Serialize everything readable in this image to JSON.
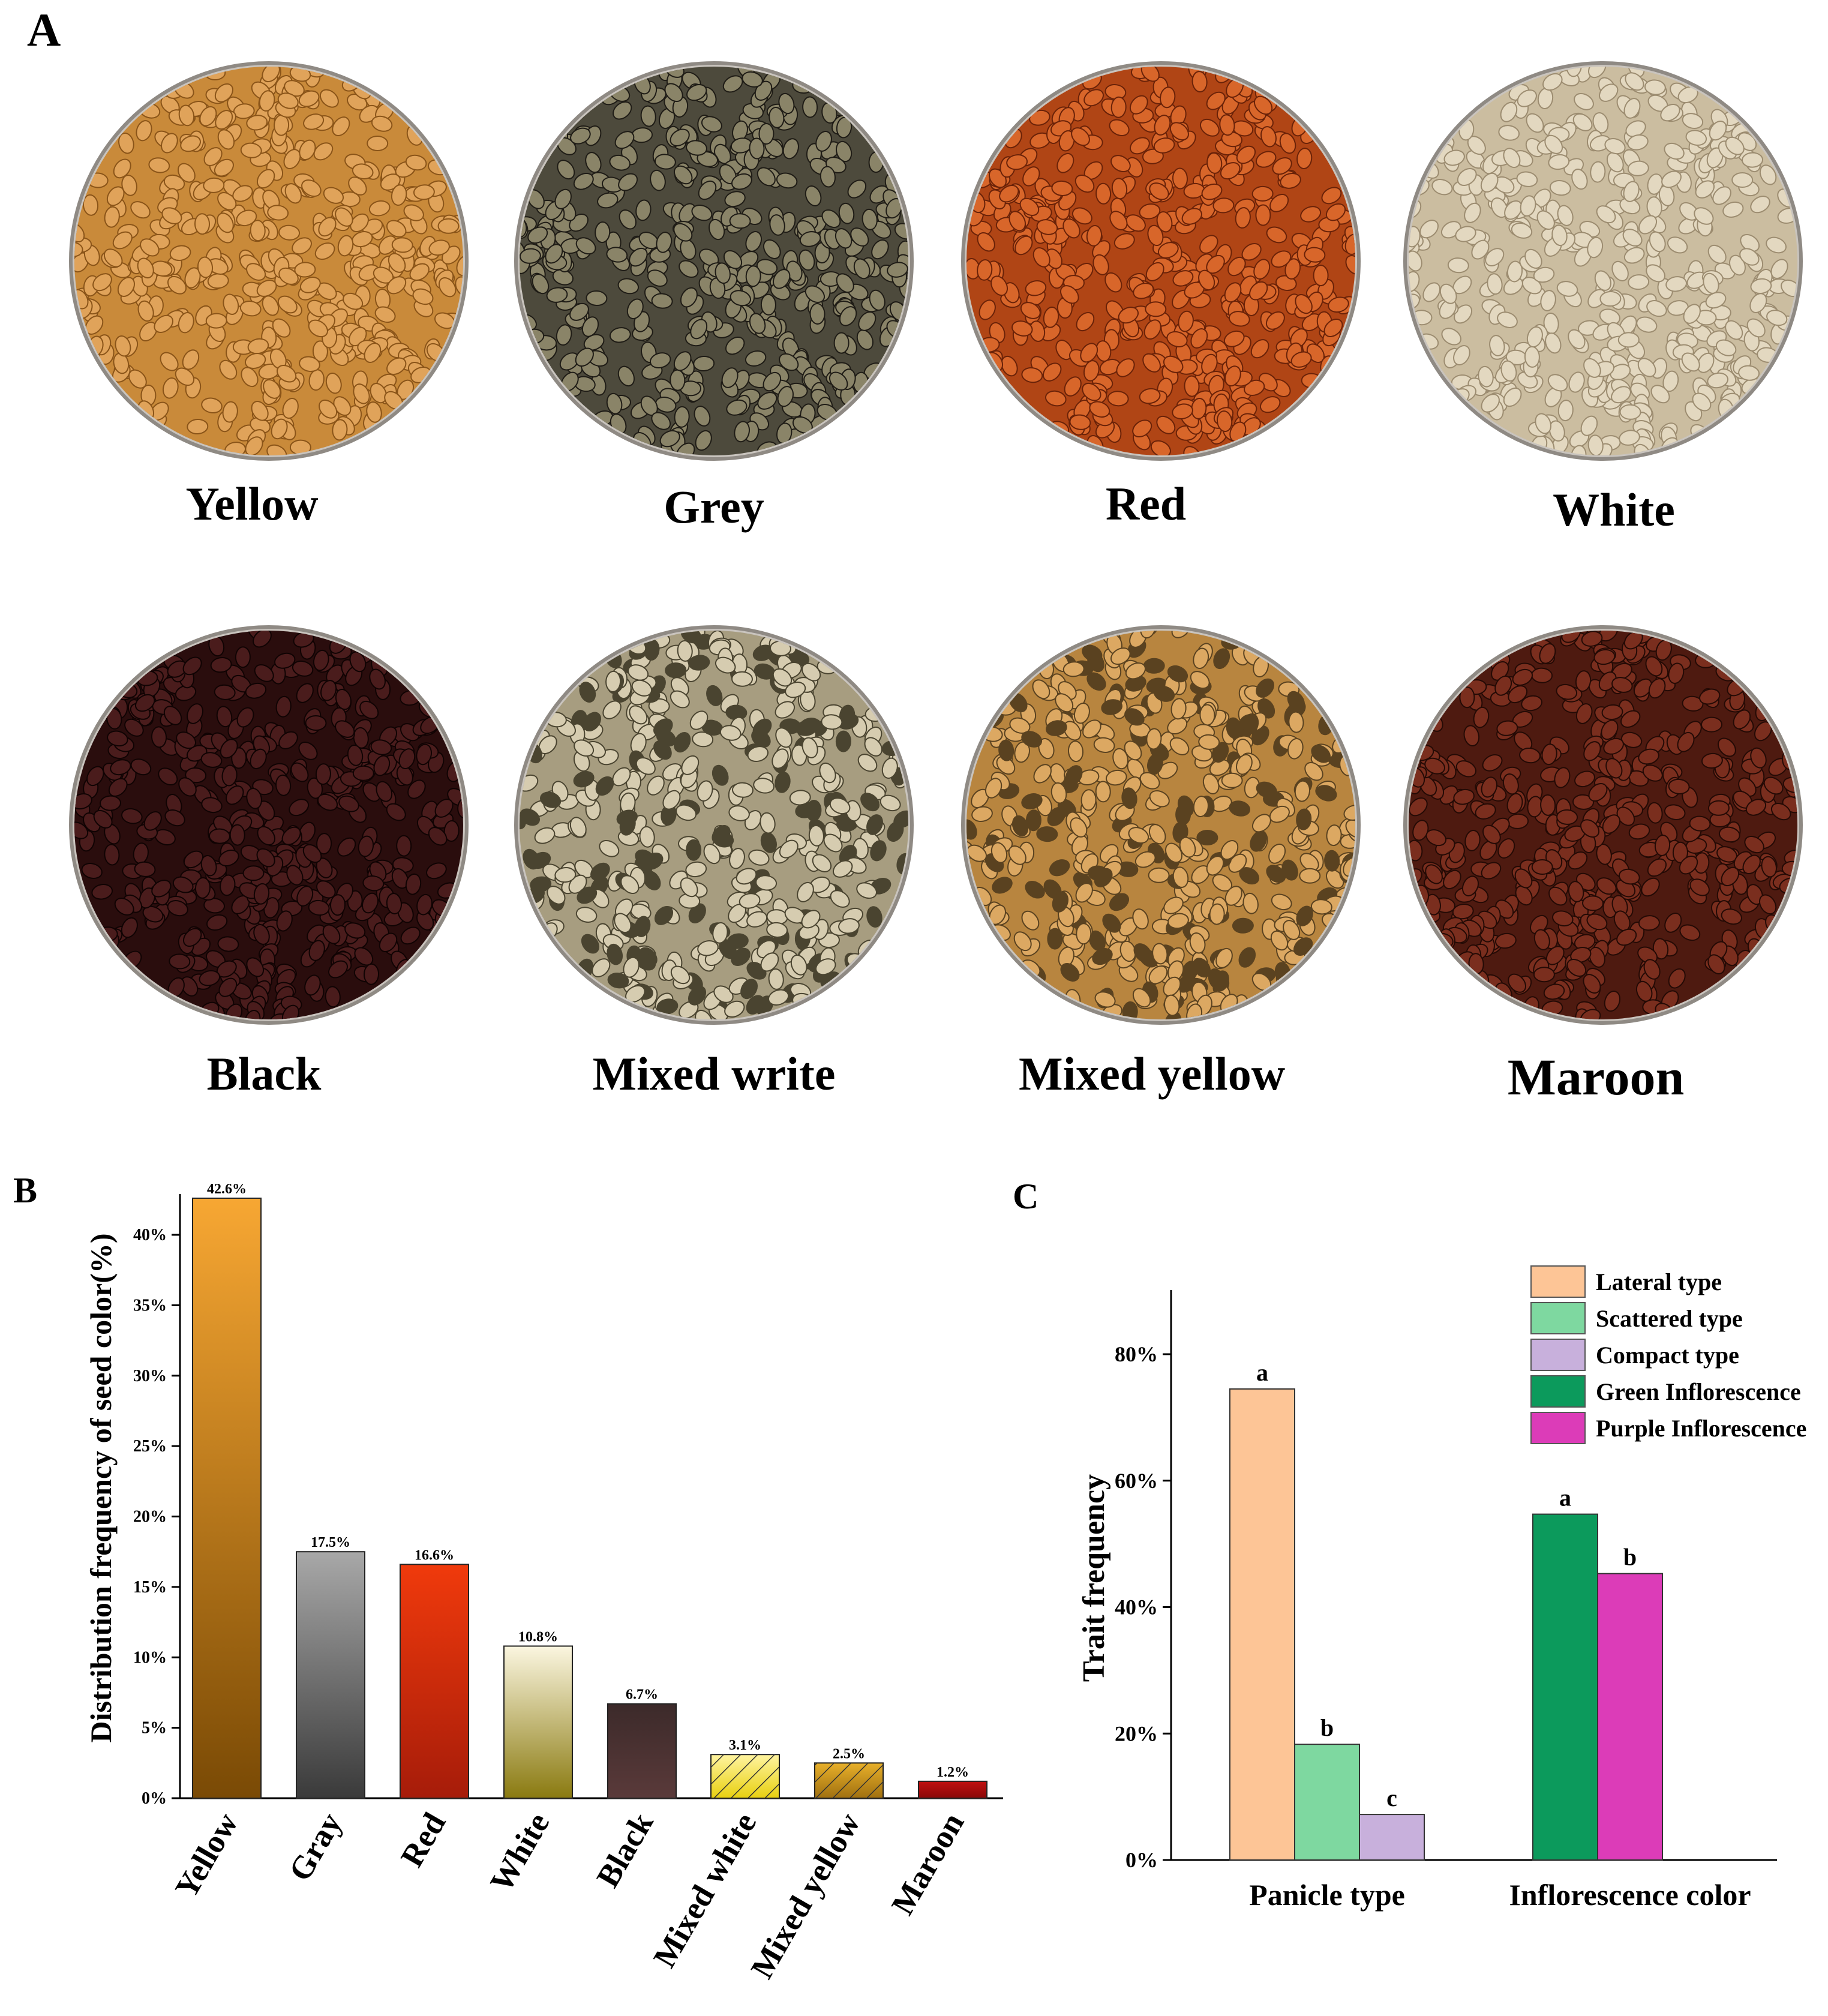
{
  "panel_labels": {
    "a": "A",
    "b": "B",
    "c": "C"
  },
  "seed_photos": [
    {
      "label": "Yellow",
      "color": "#c98a3a",
      "seed_color": "#e0a35a",
      "dark": "#8a5418"
    },
    {
      "label": "Grey",
      "color": "#4d4a3c",
      "seed_color": "#8a8468",
      "dark": "#1f1c16"
    },
    {
      "label": "Red",
      "color": "#b04515",
      "seed_color": "#d8662a",
      "dark": "#6a2208"
    },
    {
      "label": "White",
      "color": "#cbbda0",
      "seed_color": "#e3d8c0",
      "dark": "#9c8c70"
    },
    {
      "label": "Black",
      "color": "#2a0d0d",
      "seed_color": "#4a1c1c",
      "dark": "#100303"
    },
    {
      "label": "Mixed write",
      "color": "#a79d80",
      "seed_color": "#d6ccb0",
      "dark": "#4a4430"
    },
    {
      "label": "Mixed yellow",
      "color": "#b8853f",
      "seed_color": "#dca862",
      "dark": "#5a4220"
    },
    {
      "label": "Maroon",
      "color": "#4e1a10",
      "seed_color": "#7a2e1e",
      "dark": "#240a05"
    }
  ],
  "chart_data": [
    {
      "type": "bar",
      "panel": "B",
      "title": "",
      "xlabel": "",
      "ylabel": "Distribution frequency of seed color(%)",
      "ylim": [
        0,
        42.6
      ],
      "yticks": [
        "0%",
        "5%",
        "10%",
        "15%",
        "20%",
        "25%",
        "30%",
        "35%",
        "40%"
      ],
      "categories": [
        "Yellow",
        "Gray",
        "Red",
        "White",
        "Black",
        "Mixed white",
        "Mixed yellow",
        "Maroon"
      ],
      "values": [
        42.6,
        17.5,
        16.6,
        10.8,
        6.7,
        3.1,
        2.5,
        1.2
      ],
      "data_labels": [
        "42.6%",
        "17.5%",
        "16.6%",
        "10.8%",
        "6.7%",
        "3.1%",
        "2.5%",
        "1.2%"
      ],
      "bar_colors": [
        [
          "#f7a733",
          "#7a4a05"
        ],
        [
          "#a8a8a8",
          "#3a3a3a"
        ],
        [
          "#f03a0c",
          "#a61c0a"
        ],
        [
          "#fbf6e0",
          "#8a7a10"
        ],
        [
          "#3c2a2a",
          "#5a3a3a"
        ],
        [
          "#fff4a0",
          "#e8d010"
        ],
        [
          "#e8b02a",
          "#a07010"
        ],
        [
          "#c01010",
          "#8a0808"
        ]
      ],
      "hatched": [
        false,
        false,
        false,
        false,
        false,
        true,
        true,
        false
      ]
    },
    {
      "type": "bar",
      "panel": "C",
      "title": "",
      "xlabel": "",
      "ylabel": "Trait frequency",
      "ylim": [
        0,
        90
      ],
      "yticks": [
        "0%",
        "20%",
        "40%",
        "60%",
        "80%"
      ],
      "categories": [
        "Panicle type",
        "Inflorescence color"
      ],
      "series": [
        {
          "name": "Lateral type",
          "group": "Panicle type",
          "value": 74.5,
          "letter": "a",
          "color": "#fdc596"
        },
        {
          "name": "Scattered type",
          "group": "Panicle type",
          "value": 18.3,
          "letter": "b",
          "color": "#7ed8a0"
        },
        {
          "name": "Compact type",
          "group": "Panicle type",
          "value": 7.2,
          "letter": "c",
          "color": "#c8b0dc"
        },
        {
          "name": "Green Inflorescence",
          "group": "Inflorescence color",
          "value": 54.7,
          "letter": "a",
          "color": "#0c9a5c"
        },
        {
          "name": "Purple Inflorescence",
          "group": "Inflorescence color",
          "value": 45.3,
          "letter": "b",
          "color": "#dc3cb8"
        }
      ],
      "legend_position": "top-right"
    }
  ]
}
